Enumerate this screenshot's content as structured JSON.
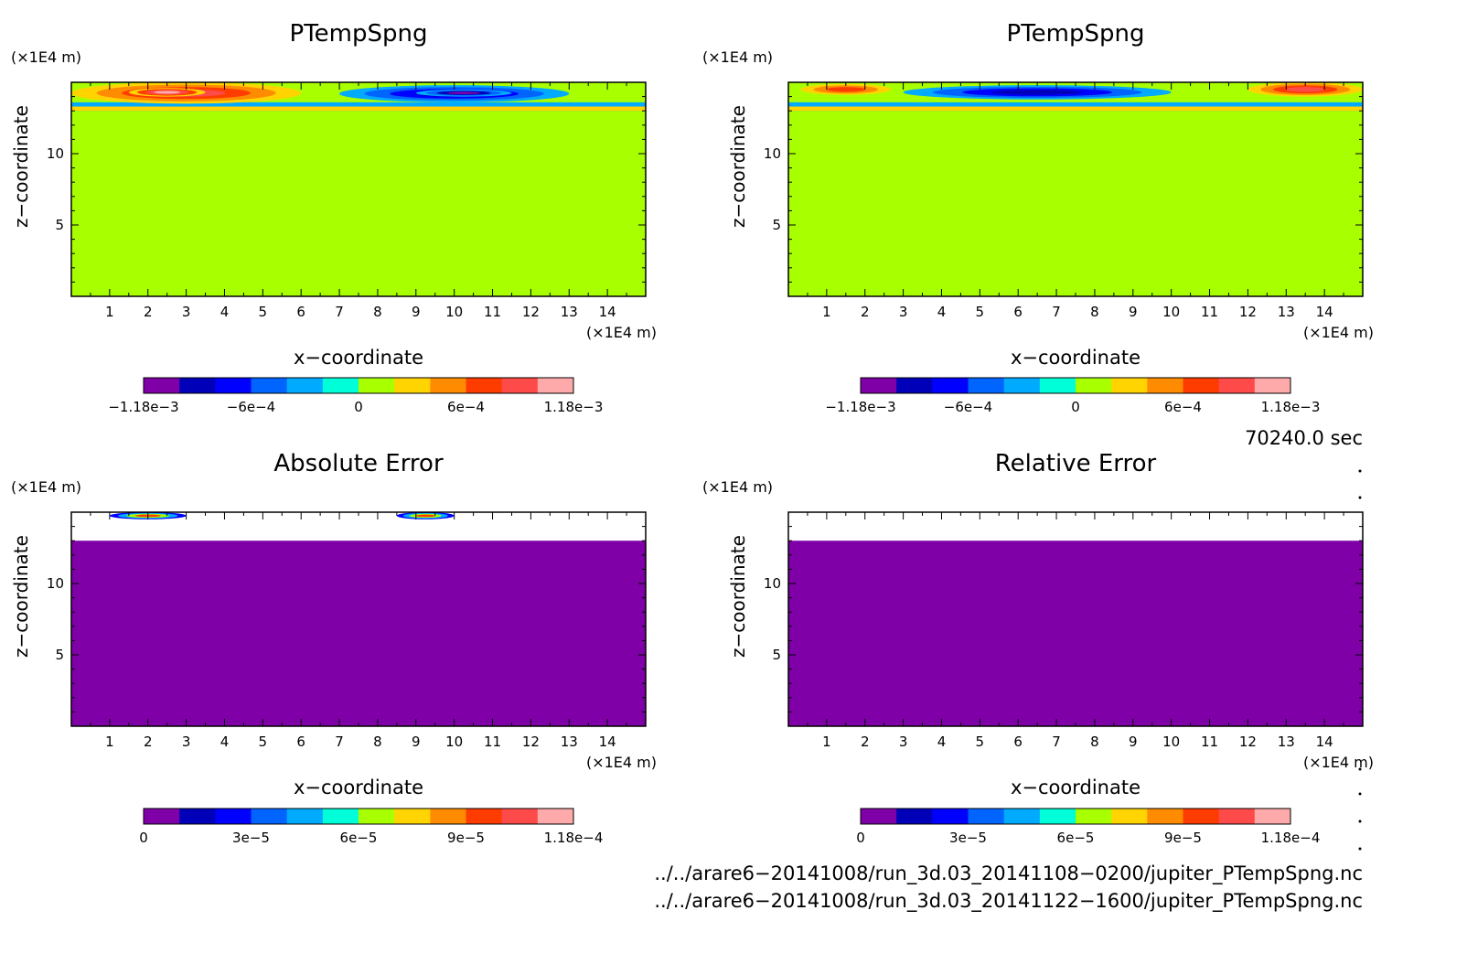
{
  "chart_data": [
    {
      "type": "heatmap",
      "title": "PTempSpng",
      "xlabel": "x−coordinate",
      "ylabel": "z−coordinate",
      "x_unit": "(×1E4 m)",
      "y_unit": "(×1E4 m)",
      "xlim": [
        0,
        15
      ],
      "ylim": [
        0,
        15
      ],
      "xticks": [
        "1",
        "2",
        "3",
        "4",
        "5",
        "6",
        "7",
        "8",
        "9",
        "10",
        "11",
        "12",
        "13",
        "14"
      ],
      "yticks": [
        "5",
        "10"
      ],
      "colorbar": {
        "ticks": [
          "−1.18e−3",
          "−6e−4",
          "0",
          "6e−4",
          "1.18e−3"
        ],
        "range": [
          -0.00118,
          0.00118
        ],
        "colors": [
          "#8000a8",
          "#0000b8",
          "#0000ff",
          "#0064ff",
          "#00aaff",
          "#00ffd8",
          "#a8ff00",
          "#ffd400",
          "#ff8c00",
          "#ff3c00",
          "#ff4a4a",
          "#ffaaaa"
        ]
      },
      "field": {
        "background": "#a8ff00",
        "background_value": 0,
        "upper_layer_z": [
          13,
          15
        ],
        "features": [
          {
            "value": 0.0008,
            "x": [
              0,
              6
            ],
            "z": [
              13.5,
              15
            ],
            "note": "warm anomaly"
          },
          {
            "value": 0.00118,
            "x": [
              1.5,
              3.5
            ],
            "z": [
              14.0,
              14.6
            ],
            "note": "max warm"
          },
          {
            "value": -0.0008,
            "x": [
              7,
              13
            ],
            "z": [
              13.6,
              14.8
            ],
            "note": "cold anomaly"
          },
          {
            "value": -0.00118,
            "x": [
              9,
              11.5
            ],
            "z": [
              14.0,
              14.5
            ],
            "note": "min cold"
          }
        ]
      }
    },
    {
      "type": "heatmap",
      "title": "PTempSpng",
      "xlabel": "x−coordinate",
      "ylabel": "z−coordinate",
      "x_unit": "(×1E4 m)",
      "y_unit": "(×1E4 m)",
      "xlim": [
        0,
        15
      ],
      "ylim": [
        0,
        15
      ],
      "xticks": [
        "1",
        "2",
        "3",
        "4",
        "5",
        "6",
        "7",
        "8",
        "9",
        "10",
        "11",
        "12",
        "13",
        "14"
      ],
      "yticks": [
        "5",
        "10"
      ],
      "colorbar": {
        "ticks": [
          "−1.18e−3",
          "−6e−4",
          "0",
          "6e−4",
          "1.18e−3"
        ],
        "range": [
          -0.00118,
          0.00118
        ],
        "colors": [
          "#8000a8",
          "#0000b8",
          "#0000ff",
          "#0064ff",
          "#00aaff",
          "#00ffd8",
          "#a8ff00",
          "#ffd400",
          "#ff8c00",
          "#ff3c00",
          "#ff4a4a",
          "#ffaaaa"
        ]
      },
      "field": {
        "background": "#a8ff00",
        "background_value": 0,
        "upper_layer_z": [
          13,
          15
        ],
        "features": [
          {
            "value": 0.0006,
            "x": [
              0,
              3
            ],
            "z": [
              14,
              15
            ],
            "note": "warm anomaly"
          },
          {
            "value": -0.0008,
            "x": [
              3,
              10
            ],
            "z": [
              13.8,
              14.8
            ],
            "note": "cold anomaly"
          },
          {
            "value": 0.0009,
            "x": [
              12,
              15
            ],
            "z": [
              14,
              15
            ],
            "note": "warm anomaly"
          }
        ]
      }
    },
    {
      "type": "heatmap",
      "title": "Absolute Error",
      "xlabel": "x−coordinate",
      "ylabel": "z−coordinate",
      "x_unit": "(×1E4 m)",
      "y_unit": "(×1E4 m)",
      "xlim": [
        0,
        15
      ],
      "ylim": [
        0,
        15
      ],
      "xticks": [
        "1",
        "2",
        "3",
        "4",
        "5",
        "6",
        "7",
        "8",
        "9",
        "10",
        "11",
        "12",
        "13",
        "14"
      ],
      "yticks": [
        "5",
        "10"
      ],
      "colorbar": {
        "ticks": [
          "0",
          "3e−5",
          "6e−5",
          "9e−5",
          "1.18e−4"
        ],
        "range": [
          0,
          0.000118
        ],
        "colors": [
          "#8000a8",
          "#0000b8",
          "#0000ff",
          "#0064ff",
          "#00aaff",
          "#00ffd8",
          "#a8ff00",
          "#ffd400",
          "#ff8c00",
          "#ff3c00",
          "#ff4a4a",
          "#ffaaaa"
        ]
      },
      "field": {
        "background": "#8000a8",
        "background_value": 0,
        "upper_layer_z": [
          13,
          15
        ],
        "upper_layer_fill": "#ffffff",
        "features": [
          {
            "value": 9e-05,
            "x": [
              1,
              3
            ],
            "z": [
              14.5,
              15
            ],
            "note": "error streaks"
          },
          {
            "value": 9e-05,
            "x": [
              8.5,
              10
            ],
            "z": [
              14.5,
              15
            ],
            "note": "error streaks"
          }
        ]
      }
    },
    {
      "type": "heatmap",
      "title": "Relative Error",
      "xlabel": "x−coordinate",
      "ylabel": "z−coordinate",
      "x_unit": "(×1E4 m)",
      "y_unit": "(×1E4 m)",
      "xlim": [
        0,
        15
      ],
      "ylim": [
        0,
        15
      ],
      "xticks": [
        "1",
        "2",
        "3",
        "4",
        "5",
        "6",
        "7",
        "8",
        "9",
        "10",
        "11",
        "12",
        "13",
        "14"
      ],
      "yticks": [
        "5",
        "10"
      ],
      "colorbar": {
        "ticks": [
          "0",
          "3e−5",
          "6e−5",
          "9e−5",
          "1.18e−4"
        ],
        "range": [
          0,
          0.000118
        ],
        "colors": [
          "#8000a8",
          "#0000b8",
          "#0000ff",
          "#0064ff",
          "#00aaff",
          "#00ffd8",
          "#a8ff00",
          "#ffd400",
          "#ff8c00",
          "#ff3c00",
          "#ff4a4a",
          "#ffaaaa"
        ]
      },
      "field": {
        "background": "#8000a8",
        "background_value": 0,
        "upper_layer_z": [
          13,
          15
        ],
        "upper_layer_fill": "#ffffff",
        "features": []
      }
    }
  ],
  "annotations": {
    "time": "70240.0 sec",
    "file1": "../../arare6−20141008/run_3d.03_20141108−0200/jupiter_PTempSpng.nc",
    "file2": "../../arare6−20141008/run_3d.03_20141122−1600/jupiter_PTempSpng.nc"
  }
}
